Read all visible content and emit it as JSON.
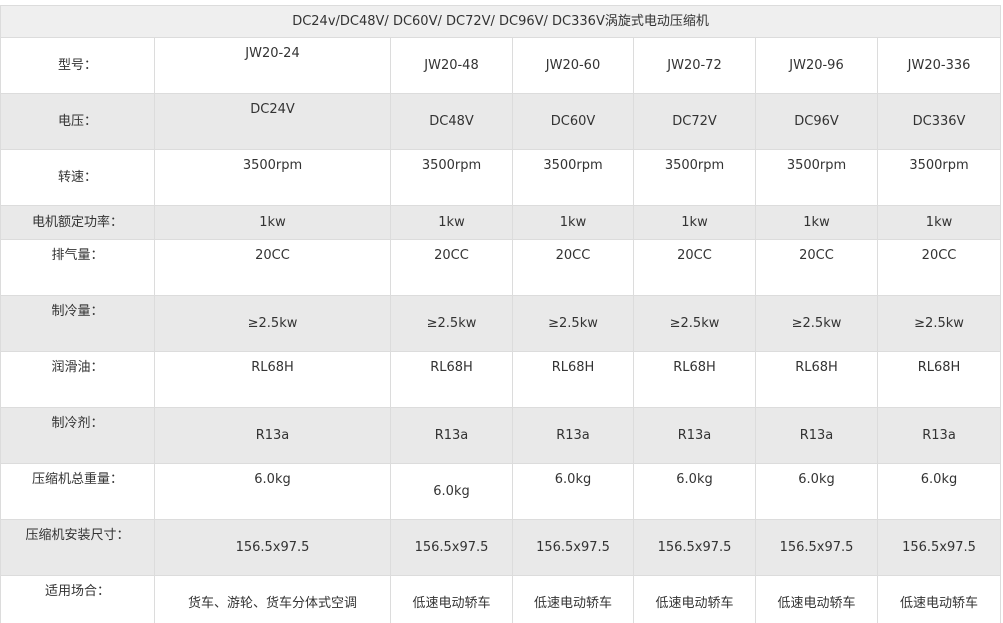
{
  "title": "DC24v/DC48V/ DC60V/ DC72V/ DC96V/ DC336V涡旋式电动压缩机",
  "rows": [
    {
      "label": "型号：",
      "values": [
        "JW20-24",
        "JW20-48",
        "JW20-60",
        "JW20-72",
        "JW20-96",
        "JW20-336"
      ]
    },
    {
      "label": "电压：",
      "values": [
        "DC24V",
        "DC48V",
        "DC60V",
        "DC72V",
        "DC96V",
        "DC336V"
      ]
    },
    {
      "label": "转速：",
      "values": [
        "3500rpm",
        "3500rpm",
        "3500rpm",
        "3500rpm",
        "3500rpm",
        "3500rpm"
      ]
    },
    {
      "label": "电机额定功率：",
      "values": [
        "1kw",
        "1kw",
        "1kw",
        "1kw",
        "1kw",
        "1kw"
      ]
    },
    {
      "label": "排气量：",
      "values": [
        "20CC",
        "20CC",
        "20CC",
        "20CC",
        "20CC",
        "20CC"
      ]
    },
    {
      "label": "制冷量：",
      "values": [
        "≥2.5kw",
        "≥2.5kw",
        "≥2.5kw",
        "≥2.5kw",
        "≥2.5kw",
        "≥2.5kw"
      ]
    },
    {
      "label": "润滑油：",
      "values": [
        "RL68H",
        "RL68H",
        "RL68H",
        "RL68H",
        "RL68H",
        "RL68H"
      ]
    },
    {
      "label": "制冷剂：",
      "values": [
        "R13a",
        "R13a",
        "R13a",
        "R13a",
        "R13a",
        "R13a"
      ]
    },
    {
      "label": "压缩机总重量：",
      "values": [
        "6.0kg",
        "6.0kg",
        "6.0kg",
        "6.0kg",
        "6.0kg",
        "6.0kg"
      ]
    },
    {
      "label": "压缩机安装尺寸：",
      "values": [
        "156.5x97.5",
        "156.5x97.5",
        "156.5x97.5",
        "156.5x97.5",
        "156.5x97.5",
        "156.5x97.5"
      ]
    },
    {
      "label": "适用场合：",
      "values": [
        "货车、游轮、货车分体式空调",
        "低速电动轿车",
        "低速电动轿车",
        "低速电动轿车",
        "低速电动轿车",
        "低速电动轿车"
      ]
    }
  ]
}
